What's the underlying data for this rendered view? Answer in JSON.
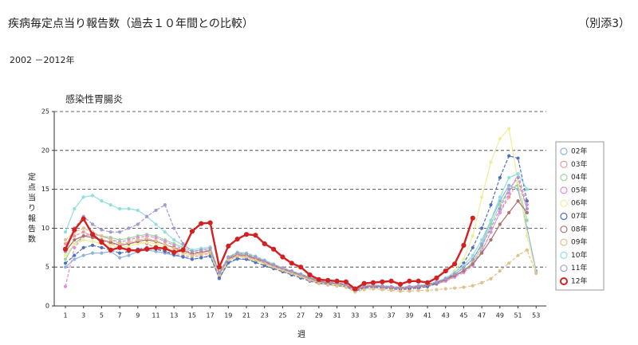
{
  "header": {
    "title": "疾病毎定点当り報告数（過去１０年間との比較）",
    "attachment": "（別添3）",
    "period": "2002 －2012年"
  },
  "chart_data": {
    "type": "line",
    "title": "感染性胃腸炎",
    "y_label": "定点当り報告数",
    "x_label": "週",
    "x": [
      1,
      2,
      3,
      4,
      5,
      6,
      7,
      8,
      9,
      10,
      11,
      12,
      13,
      14,
      15,
      16,
      17,
      18,
      19,
      20,
      21,
      22,
      23,
      24,
      25,
      26,
      27,
      28,
      29,
      30,
      31,
      32,
      33,
      34,
      35,
      36,
      37,
      38,
      39,
      40,
      41,
      42,
      43,
      44,
      45,
      46,
      47,
      48,
      49,
      50,
      51,
      52,
      53
    ],
    "xlim": [
      0,
      54
    ],
    "xticks": [
      1,
      3,
      5,
      7,
      9,
      11,
      13,
      15,
      17,
      19,
      21,
      23,
      25,
      27,
      29,
      31,
      33,
      35,
      37,
      39,
      41,
      43,
      45,
      47,
      49,
      51,
      53
    ],
    "ylim": [
      0,
      25
    ],
    "yticks": [
      0,
      5,
      10,
      15,
      20,
      25
    ],
    "grid": true,
    "legend": "right",
    "series": [
      {
        "name": "02年",
        "color": "#8fb3e0",
        "values": [
          5.0,
          6.0,
          6.5,
          6.8,
          6.8,
          7.0,
          6.2,
          6.5,
          7.0,
          7.2,
          7.0,
          6.8,
          6.5,
          6.3,
          6.0,
          6.2,
          6.5,
          3.5,
          5.5,
          6.0,
          6.0,
          5.8,
          5.5,
          5.0,
          4.5,
          4.0,
          3.8,
          3.3,
          3.0,
          2.8,
          2.7,
          2.6,
          2.0,
          2.4,
          2.5,
          2.5,
          2.4,
          2.3,
          2.4,
          2.5,
          2.6,
          3.0,
          3.5,
          4.0,
          5.0,
          6.0,
          8.0,
          11.0,
          13.5,
          15.5,
          15.0,
          10.0,
          4.5
        ]
      },
      {
        "name": "03年",
        "color": "#e89a9a",
        "values": [
          8.0,
          9.0,
          9.5,
          9.0,
          8.5,
          8.0,
          7.8,
          8.0,
          8.2,
          8.0,
          7.5,
          7.0,
          6.8,
          6.5,
          6.3,
          6.5,
          6.8,
          4.0,
          6.0,
          6.5,
          6.3,
          6.0,
          5.5,
          5.0,
          4.6,
          4.2,
          3.8,
          3.4,
          3.0,
          2.9,
          2.8,
          2.6,
          2.0,
          2.4,
          2.5,
          2.4,
          2.3,
          2.2,
          2.3,
          2.4,
          2.5,
          2.8,
          3.2,
          3.8,
          4.5,
          5.5,
          7.0,
          9.5,
          12.0,
          14.0,
          16.0,
          12.5,
          null
        ]
      },
      {
        "name": "04年",
        "color": "#9fd69a",
        "values": [
          6.0,
          8.0,
          9.0,
          9.2,
          9.0,
          8.8,
          8.5,
          8.7,
          9.0,
          9.2,
          9.0,
          8.5,
          8.0,
          7.5,
          7.0,
          7.2,
          7.4,
          4.2,
          6.2,
          6.8,
          6.6,
          6.2,
          5.8,
          5.2,
          4.8,
          4.3,
          3.9,
          3.5,
          3.1,
          3.0,
          2.8,
          2.7,
          2.1,
          2.5,
          2.6,
          2.5,
          2.4,
          2.3,
          2.4,
          2.5,
          2.6,
          2.9,
          3.3,
          3.9,
          4.6,
          5.6,
          7.5,
          10.5,
          13.0,
          15.0,
          15.5,
          11.0,
          null
        ]
      },
      {
        "name": "05年",
        "color": "#e08ce0",
        "values": [
          2.5,
          7.5,
          9.0,
          9.3,
          9.0,
          8.6,
          8.2,
          8.5,
          8.8,
          9.0,
          8.8,
          8.3,
          7.8,
          7.3,
          6.8,
          7.0,
          7.2,
          4.0,
          6.0,
          6.5,
          6.4,
          6.0,
          5.6,
          5.1,
          4.7,
          4.2,
          3.8,
          3.4,
          3.0,
          2.9,
          2.7,
          2.6,
          2.0,
          2.4,
          2.5,
          2.4,
          2.3,
          2.2,
          2.3,
          2.4,
          2.5,
          2.8,
          3.2,
          3.7,
          4.3,
          5.2,
          7.0,
          9.5,
          12.0,
          14.5,
          17.0,
          13.0,
          null
        ]
      },
      {
        "name": "06年",
        "color": "#eeee99",
        "values": [
          6.5,
          8.0,
          8.5,
          8.3,
          8.0,
          7.8,
          7.5,
          7.7,
          8.0,
          8.2,
          8.0,
          7.6,
          7.2,
          6.8,
          6.5,
          6.7,
          6.9,
          3.8,
          5.8,
          6.3,
          6.2,
          5.8,
          5.4,
          4.9,
          4.5,
          4.1,
          3.7,
          3.3,
          2.9,
          2.8,
          2.7,
          2.5,
          1.9,
          2.3,
          2.4,
          2.3,
          2.2,
          2.1,
          2.2,
          2.3,
          2.5,
          2.9,
          3.5,
          4.5,
          6.0,
          9.0,
          14.0,
          18.5,
          21.5,
          22.8,
          16.0,
          9.0,
          4.2
        ]
      },
      {
        "name": "07年",
        "color": "#4f6fc0",
        "values": [
          5.5,
          6.5,
          7.5,
          7.8,
          7.5,
          7.2,
          6.8,
          7.0,
          7.3,
          7.5,
          7.3,
          7.0,
          6.6,
          6.3,
          6.0,
          6.2,
          6.4,
          3.6,
          5.6,
          6.1,
          6.0,
          5.6,
          5.2,
          4.8,
          4.4,
          4.0,
          3.6,
          3.2,
          2.9,
          2.8,
          2.6,
          2.5,
          1.9,
          2.3,
          2.4,
          2.3,
          2.2,
          2.1,
          2.2,
          2.3,
          2.5,
          2.9,
          3.4,
          4.2,
          5.5,
          7.5,
          10.0,
          13.0,
          16.5,
          19.3,
          19.0,
          13.5,
          null
        ]
      },
      {
        "name": "08年",
        "color": "#b07070",
        "values": [
          7.0,
          8.5,
          9.0,
          8.8,
          8.5,
          8.2,
          7.8,
          8.0,
          8.3,
          8.5,
          8.3,
          7.9,
          7.5,
          7.1,
          6.7,
          6.9,
          7.1,
          4.2,
          6.1,
          6.6,
          6.5,
          6.1,
          5.7,
          5.2,
          4.8,
          4.4,
          4.0,
          3.6,
          3.2,
          3.0,
          2.9,
          2.7,
          2.1,
          2.5,
          2.6,
          2.5,
          2.4,
          2.3,
          2.4,
          2.5,
          2.7,
          3.0,
          3.4,
          3.9,
          4.5,
          5.4,
          6.8,
          8.5,
          10.5,
          12.0,
          13.5,
          12.0,
          null
        ]
      },
      {
        "name": "09年",
        "color": "#e2c08c",
        "values": [
          8.5,
          9.5,
          10.0,
          9.5,
          9.0,
          8.5,
          8.0,
          8.2,
          8.5,
          8.7,
          8.4,
          7.9,
          7.4,
          6.9,
          6.5,
          6.7,
          6.9,
          4.0,
          5.9,
          6.4,
          6.3,
          5.9,
          5.5,
          5.0,
          4.6,
          4.2,
          3.8,
          3.3,
          2.9,
          2.7,
          2.6,
          2.4,
          1.8,
          2.1,
          2.2,
          2.1,
          2.0,
          1.9,
          1.9,
          2.0,
          2.0,
          2.1,
          2.2,
          2.3,
          2.4,
          2.6,
          3.0,
          3.5,
          4.5,
          5.5,
          6.5,
          7.2,
          4.2
        ]
      },
      {
        "name": "10年",
        "color": "#8ee0dc",
        "values": [
          9.5,
          12.5,
          14.0,
          14.2,
          13.5,
          13.0,
          12.5,
          12.5,
          12.3,
          11.5,
          10.5,
          9.5,
          8.5,
          7.8,
          7.2,
          7.4,
          7.6,
          4.3,
          6.3,
          6.9,
          6.8,
          6.4,
          5.9,
          5.4,
          4.9,
          4.5,
          4.1,
          3.7,
          3.3,
          3.1,
          3.0,
          2.8,
          2.2,
          2.6,
          2.7,
          2.6,
          2.5,
          2.4,
          2.5,
          2.6,
          2.8,
          3.1,
          3.6,
          4.3,
          5.2,
          6.5,
          8.5,
          11.0,
          14.0,
          16.5,
          17.0,
          15.0,
          null
        ]
      },
      {
        "name": "11年",
        "color": "#a898cc",
        "values": [
          7.0,
          10.0,
          11.5,
          10.5,
          9.8,
          9.5,
          9.5,
          10.0,
          10.5,
          11.5,
          12.3,
          13.0,
          10.0,
          8.0,
          7.0,
          7.2,
          7.4,
          4.3,
          6.3,
          6.8,
          6.7,
          6.3,
          5.8,
          5.3,
          4.9,
          4.5,
          4.1,
          3.7,
          3.3,
          3.1,
          3.0,
          2.8,
          2.2,
          2.6,
          2.7,
          2.6,
          2.5,
          2.4,
          2.5,
          2.6,
          2.8,
          3.1,
          3.5,
          4.1,
          4.9,
          6.0,
          7.8,
          10.0,
          12.5,
          15.0,
          16.5,
          12.5,
          null
        ]
      },
      {
        "name": "12年",
        "color": "#d42020",
        "values": [
          7.3,
          9.8,
          11.2,
          9.2,
          8.2,
          7.2,
          7.5,
          7.2,
          7.1,
          7.3,
          7.5,
          7.4,
          6.9,
          7.2,
          9.6,
          10.6,
          10.7,
          5.0,
          7.7,
          8.6,
          9.2,
          9.1,
          8.0,
          7.3,
          6.3,
          5.5,
          5.0,
          4.0,
          3.4,
          3.3,
          3.2,
          3.1,
          2.2,
          2.9,
          3.0,
          3.1,
          3.2,
          2.8,
          3.2,
          3.2,
          3.0,
          3.6,
          4.5,
          5.4,
          7.8,
          11.3,
          null,
          null,
          null,
          null,
          null,
          null,
          null
        ]
      }
    ]
  }
}
